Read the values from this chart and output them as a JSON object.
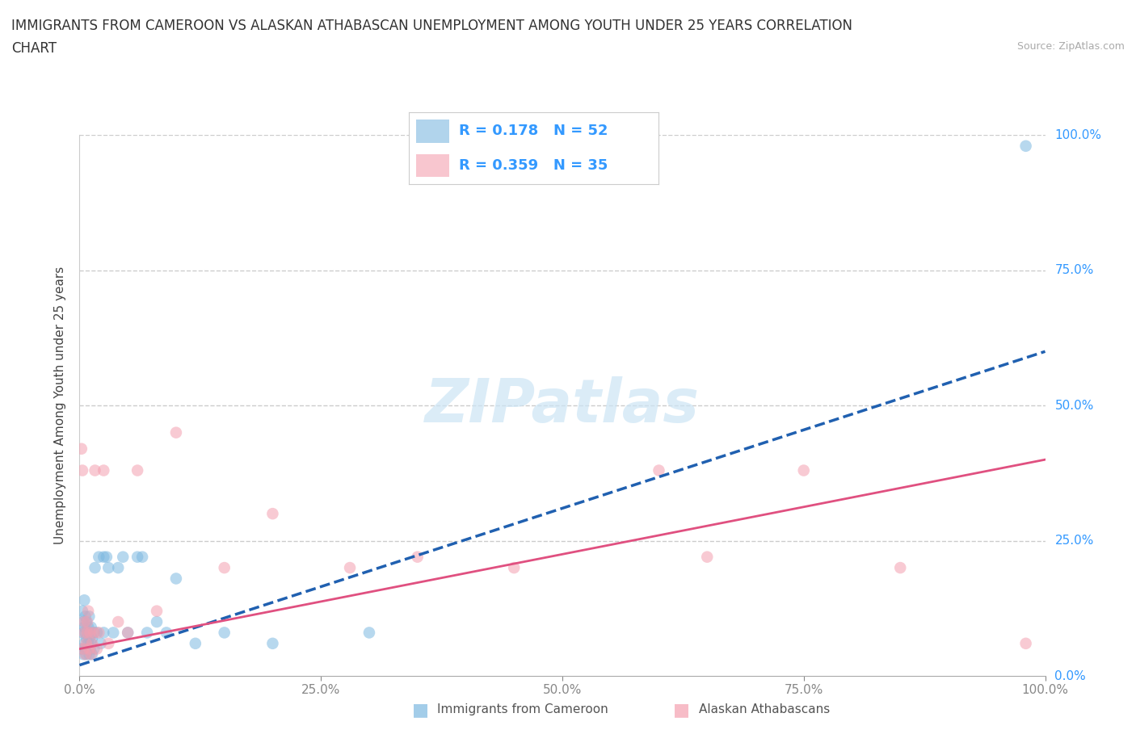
{
  "title_line1": "IMMIGRANTS FROM CAMEROON VS ALASKAN ATHABASCAN UNEMPLOYMENT AMONG YOUTH UNDER 25 YEARS CORRELATION",
  "title_line2": "CHART",
  "source_text": "Source: ZipAtlas.com",
  "ylabel": "Unemployment Among Youth under 25 years",
  "legend_label1": "Immigrants from Cameroon",
  "legend_label2": "Alaskan Athabascans",
  "R1": 0.178,
  "N1": 52,
  "R2": 0.359,
  "N2": 35,
  "color1": "#7db8e0",
  "color2": "#f4a0b0",
  "trendline1_color": "#2060b0",
  "trendline2_color": "#e05080",
  "background_color": "#ffffff",
  "xlim": [
    0.0,
    1.0
  ],
  "ylim": [
    0.0,
    1.0
  ],
  "xticks": [
    0.0,
    0.25,
    0.5,
    0.75,
    1.0
  ],
  "yticks": [
    0.0,
    0.25,
    0.5,
    0.75,
    1.0
  ],
  "xticklabels": [
    "0.0%",
    "25.0%",
    "50.0%",
    "75.0%",
    "100.0%"
  ],
  "yticklabels": [
    "0.0%",
    "25.0%",
    "50.0%",
    "75.0%",
    "100.0%"
  ],
  "scatter1_x": [
    0.002,
    0.003,
    0.003,
    0.004,
    0.004,
    0.005,
    0.005,
    0.005,
    0.006,
    0.006,
    0.006,
    0.007,
    0.007,
    0.007,
    0.008,
    0.008,
    0.009,
    0.009,
    0.01,
    0.01,
    0.01,
    0.011,
    0.011,
    0.012,
    0.012,
    0.013,
    0.013,
    0.015,
    0.015,
    0.016,
    0.018,
    0.02,
    0.022,
    0.025,
    0.025,
    0.028,
    0.03,
    0.035,
    0.04,
    0.045,
    0.05,
    0.06,
    0.065,
    0.07,
    0.08,
    0.09,
    0.1,
    0.12,
    0.15,
    0.2,
    0.3,
    0.98
  ],
  "scatter1_y": [
    0.05,
    0.08,
    0.12,
    0.04,
    0.1,
    0.06,
    0.09,
    0.14,
    0.05,
    0.08,
    0.11,
    0.04,
    0.07,
    0.1,
    0.05,
    0.08,
    0.06,
    0.09,
    0.04,
    0.07,
    0.11,
    0.05,
    0.08,
    0.06,
    0.09,
    0.04,
    0.07,
    0.05,
    0.08,
    0.2,
    0.08,
    0.22,
    0.06,
    0.08,
    0.22,
    0.22,
    0.2,
    0.08,
    0.2,
    0.22,
    0.08,
    0.22,
    0.22,
    0.08,
    0.1,
    0.08,
    0.18,
    0.06,
    0.08,
    0.06,
    0.08,
    0.98
  ],
  "scatter2_x": [
    0.002,
    0.003,
    0.004,
    0.005,
    0.005,
    0.006,
    0.007,
    0.008,
    0.008,
    0.009,
    0.01,
    0.011,
    0.012,
    0.013,
    0.015,
    0.016,
    0.018,
    0.02,
    0.025,
    0.03,
    0.04,
    0.05,
    0.06,
    0.08,
    0.1,
    0.15,
    0.2,
    0.28,
    0.35,
    0.45,
    0.6,
    0.65,
    0.75,
    0.85,
    0.98
  ],
  "scatter2_y": [
    0.42,
    0.38,
    0.05,
    0.08,
    0.1,
    0.04,
    0.06,
    0.08,
    0.1,
    0.12,
    0.05,
    0.08,
    0.04,
    0.06,
    0.08,
    0.38,
    0.05,
    0.08,
    0.38,
    0.06,
    0.1,
    0.08,
    0.38,
    0.12,
    0.45,
    0.2,
    0.3,
    0.2,
    0.22,
    0.2,
    0.38,
    0.22,
    0.38,
    0.2,
    0.06
  ],
  "trendline1_x0": 0.0,
  "trendline1_y0": 0.02,
  "trendline1_x1": 1.0,
  "trendline1_y1": 0.6,
  "trendline2_x0": 0.0,
  "trendline2_y0": 0.05,
  "trendline2_x1": 1.0,
  "trendline2_y1": 0.4
}
